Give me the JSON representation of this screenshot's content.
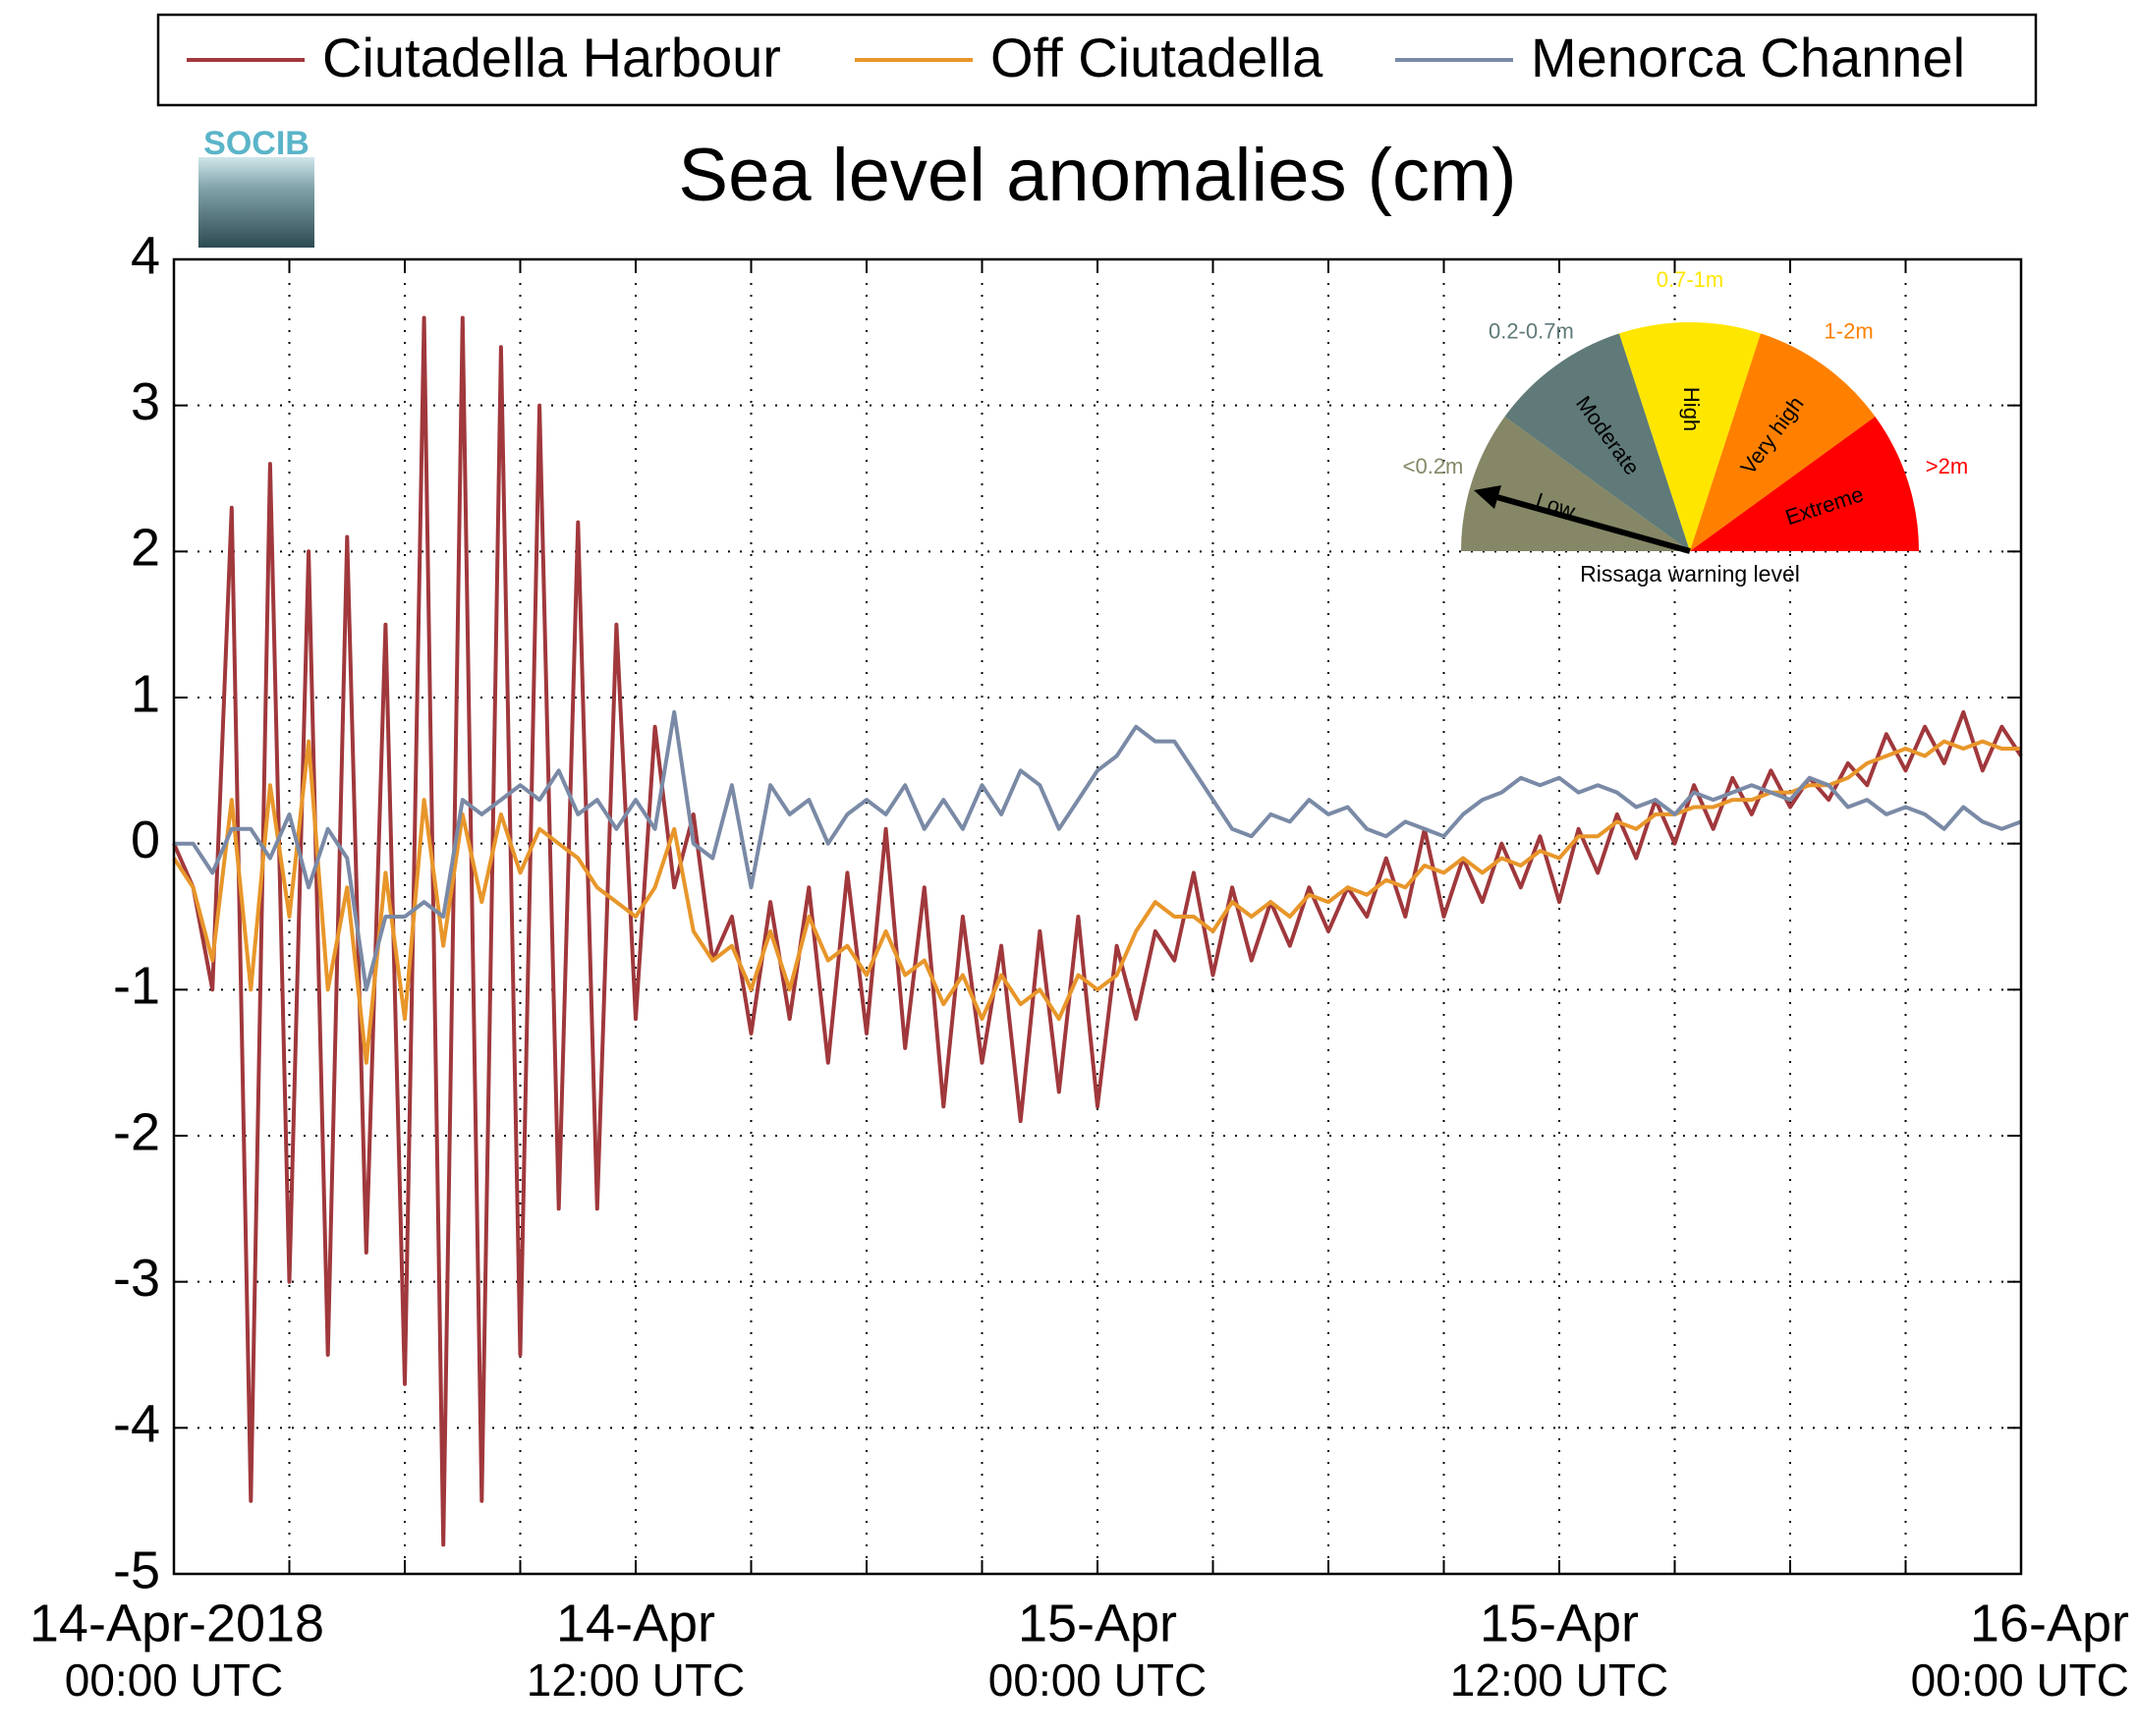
{
  "chart_data": {
    "type": "line",
    "title": "Sea level anomalies (cm)",
    "logo": "SOCIB",
    "x": [
      "2018-04-14T00:00",
      "2018-04-14T00:30",
      "2018-04-14T01:00",
      "2018-04-14T01:30",
      "2018-04-14T02:00",
      "2018-04-14T02:30",
      "2018-04-14T03:00",
      "2018-04-14T03:30",
      "2018-04-14T04:00",
      "2018-04-14T04:30",
      "2018-04-14T05:00",
      "2018-04-14T05:30",
      "2018-04-14T06:00",
      "2018-04-14T06:30",
      "2018-04-14T07:00",
      "2018-04-14T07:30",
      "2018-04-14T08:00",
      "2018-04-14T08:30",
      "2018-04-14T09:00",
      "2018-04-14T09:30",
      "2018-04-14T10:00",
      "2018-04-14T10:30",
      "2018-04-14T11:00",
      "2018-04-14T11:30",
      "2018-04-14T12:00",
      "2018-04-14T12:30",
      "2018-04-14T13:00",
      "2018-04-14T13:30",
      "2018-04-14T14:00",
      "2018-04-14T14:30",
      "2018-04-14T15:00",
      "2018-04-14T15:30",
      "2018-04-14T16:00",
      "2018-04-14T16:30",
      "2018-04-14T17:00",
      "2018-04-14T17:30",
      "2018-04-14T18:00",
      "2018-04-14T18:30",
      "2018-04-14T19:00",
      "2018-04-14T19:30",
      "2018-04-14T20:00",
      "2018-04-14T20:30",
      "2018-04-14T21:00",
      "2018-04-14T21:30",
      "2018-04-14T22:00",
      "2018-04-14T22:30",
      "2018-04-14T23:00",
      "2018-04-14T23:30",
      "2018-04-15T00:00",
      "2018-04-15T00:30",
      "2018-04-15T01:00",
      "2018-04-15T01:30",
      "2018-04-15T02:00",
      "2018-04-15T02:30",
      "2018-04-15T03:00",
      "2018-04-15T03:30",
      "2018-04-15T04:00",
      "2018-04-15T04:30",
      "2018-04-15T05:00",
      "2018-04-15T05:30",
      "2018-04-15T06:00",
      "2018-04-15T06:30",
      "2018-04-15T07:00",
      "2018-04-15T07:30",
      "2018-04-15T08:00",
      "2018-04-15T08:30",
      "2018-04-15T09:00",
      "2018-04-15T09:30",
      "2018-04-15T10:00",
      "2018-04-15T10:30",
      "2018-04-15T11:00",
      "2018-04-15T11:30",
      "2018-04-15T12:00",
      "2018-04-15T12:30",
      "2018-04-15T13:00",
      "2018-04-15T13:30",
      "2018-04-15T14:00",
      "2018-04-15T14:30",
      "2018-04-15T15:00",
      "2018-04-15T15:30",
      "2018-04-15T16:00",
      "2018-04-15T16:30",
      "2018-04-15T17:00",
      "2018-04-15T17:30",
      "2018-04-15T18:00",
      "2018-04-15T18:30",
      "2018-04-15T19:00",
      "2018-04-15T19:30",
      "2018-04-15T20:00",
      "2018-04-15T20:30",
      "2018-04-15T21:00",
      "2018-04-15T21:30",
      "2018-04-15T22:00",
      "2018-04-15T22:30",
      "2018-04-15T23:00",
      "2018-04-15T23:30",
      "2018-04-16T00:00"
    ],
    "series": [
      {
        "name": "Ciutadella Harbour",
        "color": "#a0383c",
        "values": [
          0,
          -0.3,
          -1,
          2.3,
          -4.5,
          2.6,
          -3,
          2,
          -3.5,
          2.1,
          -2.8,
          1.5,
          -3.7,
          3.6,
          -4.8,
          3.6,
          -4.5,
          3.4,
          -3.5,
          3,
          -2.5,
          2.2,
          -2.5,
          1.5,
          -1.2,
          0.8,
          -0.3,
          0.2,
          -0.8,
          -0.5,
          -1.3,
          -0.4,
          -1.2,
          -0.3,
          -1.5,
          -0.2,
          -1.3,
          0.1,
          -1.4,
          -0.3,
          -1.8,
          -0.5,
          -1.5,
          -0.7,
          -1.9,
          -0.6,
          -1.7,
          -0.5,
          -1.8,
          -0.7,
          -1.2,
          -0.6,
          -0.8,
          -0.2,
          -0.9,
          -0.3,
          -0.8,
          -0.4,
          -0.7,
          -0.3,
          -0.6,
          -0.3,
          -0.5,
          -0.1,
          -0.5,
          0.1,
          -0.5,
          -0.1,
          -0.4,
          0,
          -0.3,
          0.05,
          -0.4,
          0.1,
          -0.2,
          0.2,
          -0.1,
          0.3,
          0,
          0.4,
          0.1,
          0.45,
          0.2,
          0.5,
          0.25,
          0.45,
          0.3,
          0.55,
          0.4,
          0.75,
          0.5,
          0.8,
          0.55,
          0.9,
          0.5,
          0.8,
          0.6
        ]
      },
      {
        "name": "Off Ciutadella",
        "color": "#e8962a",
        "values": [
          -0.1,
          -0.3,
          -0.8,
          0.3,
          -1,
          0.4,
          -0.5,
          0.7,
          -1,
          -0.3,
          -1.5,
          -0.2,
          -1.2,
          0.3,
          -0.7,
          0.2,
          -0.4,
          0.2,
          -0.2,
          0.1,
          0,
          -0.1,
          -0.3,
          -0.4,
          -0.5,
          -0.3,
          0.1,
          -0.6,
          -0.8,
          -0.7,
          -1,
          -0.6,
          -1,
          -0.5,
          -0.8,
          -0.7,
          -0.9,
          -0.6,
          -0.9,
          -0.8,
          -1.1,
          -0.9,
          -1.2,
          -0.9,
          -1.1,
          -1.0,
          -1.2,
          -0.9,
          -1.0,
          -0.9,
          -0.6,
          -0.4,
          -0.5,
          -0.5,
          -0.6,
          -0.4,
          -0.5,
          -0.4,
          -0.5,
          -0.35,
          -0.4,
          -0.3,
          -0.35,
          -0.25,
          -0.3,
          -0.15,
          -0.2,
          -0.1,
          -0.2,
          -0.1,
          -0.15,
          -0.05,
          -0.1,
          0.05,
          0.05,
          0.15,
          0.1,
          0.2,
          0.2,
          0.25,
          0.25,
          0.3,
          0.3,
          0.35,
          0.35,
          0.4,
          0.4,
          0.45,
          0.55,
          0.6,
          0.65,
          0.6,
          0.7,
          0.65,
          0.7,
          0.65,
          0.65
        ]
      },
      {
        "name": "Menorca Channel",
        "color": "#7a8aa6",
        "values": [
          0,
          0,
          -0.2,
          0.1,
          0.1,
          -0.1,
          0.2,
          -0.3,
          0.1,
          -0.1,
          -1,
          -0.5,
          -0.5,
          -0.4,
          -0.5,
          0.3,
          0.2,
          0.3,
          0.4,
          0.3,
          0.5,
          0.2,
          0.3,
          0.1,
          0.3,
          0.1,
          0.9,
          0,
          -0.1,
          0.4,
          -0.3,
          0.4,
          0.2,
          0.3,
          0,
          0.2,
          0.3,
          0.2,
          0.4,
          0.1,
          0.3,
          0.1,
          0.4,
          0.2,
          0.5,
          0.4,
          0.1,
          0.3,
          0.5,
          0.6,
          0.8,
          0.7,
          0.7,
          0.5,
          0.3,
          0.1,
          0.05,
          0.2,
          0.15,
          0.3,
          0.2,
          0.25,
          0.1,
          0.05,
          0.15,
          0.1,
          0.05,
          0.2,
          0.3,
          0.35,
          0.45,
          0.4,
          0.45,
          0.35,
          0.4,
          0.35,
          0.25,
          0.3,
          0.2,
          0.35,
          0.3,
          0.35,
          0.4,
          0.35,
          0.3,
          0.45,
          0.4,
          0.25,
          0.3,
          0.2,
          0.25,
          0.2,
          0.1,
          0.25,
          0.15,
          0.1,
          0.15
        ]
      }
    ],
    "xlim": [
      "2018-04-14T00:00",
      "2018-04-16T00:00"
    ],
    "xticks": [
      {
        "value": "2018-04-14T00:00",
        "label": "14-Apr-2018",
        "time": "00:00 UTC"
      },
      {
        "value": "2018-04-14T12:00",
        "label": "14-Apr",
        "time": "12:00 UTC"
      },
      {
        "value": "2018-04-15T00:00",
        "label": "15-Apr",
        "time": "00:00 UTC"
      },
      {
        "value": "2018-04-15T12:00",
        "label": "15-Apr",
        "time": "12:00 UTC"
      },
      {
        "value": "2018-04-16T00:00",
        "label": "16-Apr",
        "time": "00:00 UTC"
      }
    ],
    "xgrid": [
      "2018-04-14T03:00",
      "2018-04-14T06:00",
      "2018-04-14T09:00",
      "2018-04-14T12:00",
      "2018-04-14T15:00",
      "2018-04-14T18:00",
      "2018-04-14T21:00",
      "2018-04-15T00:00",
      "2018-04-15T03:00",
      "2018-04-15T06:00",
      "2018-04-15T09:00",
      "2018-04-15T12:00",
      "2018-04-15T15:00",
      "2018-04-15T18:00",
      "2018-04-15T21:00"
    ],
    "ylim": [
      -5,
      4
    ],
    "yticks": [
      -5,
      -4,
      -3,
      -2,
      -1,
      0,
      1,
      2,
      3,
      4
    ],
    "grid": true,
    "legend": "top",
    "gauge": {
      "title": "Rissaga warning level",
      "sectors": [
        {
          "name": "Low",
          "range": "<0.2m",
          "color": "#858766"
        },
        {
          "name": "Moderate",
          "range": "0.2-0.7m",
          "color": "#5f7a78"
        },
        {
          "name": "High",
          "range": "0.7-1m",
          "color": "#ffe600"
        },
        {
          "name": "Very high",
          "range": "1-2m",
          "color": "#ff8000"
        },
        {
          "name": "Extreme",
          "range": ">2m",
          "color": "#ff0000"
        }
      ]
    }
  }
}
